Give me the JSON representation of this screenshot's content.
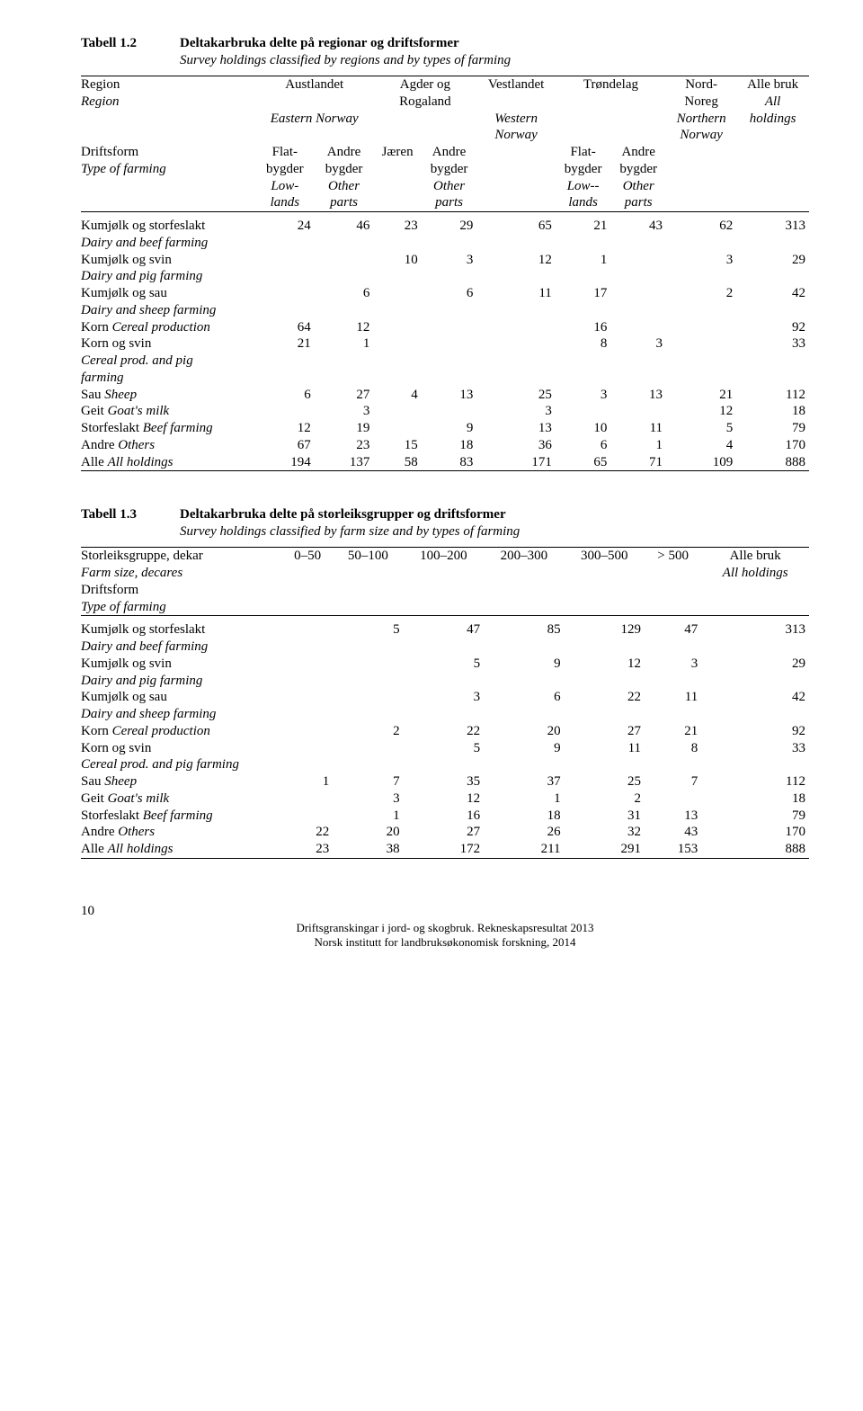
{
  "table1": {
    "number": "Tabell 1.2",
    "title": "Deltakarbruka delte på regionar og driftsformer",
    "subtitle": "Survey holdings classified by regions and by types of farming",
    "head": {
      "region": "Region",
      "region_en": "Region",
      "austlandet": "Austlandet",
      "eastern": "Eastern Norway",
      "agder": "Agder og",
      "rogaland": "Rogaland",
      "vestlandet": "Vestlandet",
      "western": "Western",
      "norway_w": "Norway",
      "trondelag": "Trøndelag",
      "nord": "Nord-",
      "noreg": "Noreg",
      "northern": "Northern",
      "norway_n": "Norway",
      "alle": "Alle bruk",
      "all": "All",
      "holdings": "holdings",
      "driftsform": "Driftsform",
      "typefarm": "Type of farming",
      "flat": "Flat-",
      "bygder": "bygder",
      "low": "Low-",
      "lands": "lands",
      "andre": "Andre",
      "other": "Other",
      "parts": "parts",
      "jaeren": "Jæren",
      "low2": "Low--"
    },
    "rows": [
      {
        "l1": "Kumjølk og storfeslakt",
        "l2": "Dairy and beef farming",
        "v": [
          "24",
          "46",
          "23",
          "29",
          "65",
          "21",
          "43",
          "62",
          "313"
        ]
      },
      {
        "l1": "Kumjølk og svin",
        "l2": "Dairy and pig farming",
        "v": [
          "",
          "",
          "10",
          "3",
          "12",
          "1",
          "",
          "3",
          "29"
        ]
      },
      {
        "l1": "Kumjølk og sau",
        "l2": "Dairy and sheep farming",
        "v": [
          "",
          "6",
          "",
          "6",
          "11",
          "17",
          "",
          "2",
          "42"
        ]
      },
      {
        "l1": "Korn <span class=\"italic\">Cereal production</span>",
        "v": [
          "64",
          "12",
          "",
          "",
          "",
          "16",
          "",
          "",
          "92"
        ]
      },
      {
        "l1": "Korn og svin",
        "l2": "Cereal prod. and pig",
        "l3": "farming",
        "v": [
          "21",
          "1",
          "",
          "",
          "",
          "8",
          "3",
          "",
          "33"
        ]
      },
      {
        "l1": "Sau  <span class=\"italic\">Sheep</span>",
        "v": [
          "6",
          "27",
          "4",
          "13",
          "25",
          "3",
          "13",
          "21",
          "112"
        ]
      },
      {
        "l1": "Geit  <span class=\"italic\">Goat's milk</span>",
        "v": [
          "",
          "3",
          "",
          "",
          "3",
          "",
          "",
          "12",
          "18"
        ]
      },
      {
        "l1": "Storfeslakt  <span class=\"italic\">Beef farming</span>",
        "v": [
          "12",
          "19",
          "",
          "9",
          "13",
          "10",
          "11",
          "5",
          "79"
        ]
      },
      {
        "l1": "Andre  <span class=\"italic\">Others</span>",
        "v": [
          "67",
          "23",
          "15",
          "18",
          "36",
          "6",
          "1",
          "4",
          "170"
        ]
      },
      {
        "l1": "Alle  <span class=\"italic\">All holdings</span>",
        "v": [
          "194",
          "137",
          "58",
          "83",
          "171",
          "65",
          "71",
          "109",
          "888"
        ]
      }
    ]
  },
  "table2": {
    "number": "Tabell 1.3",
    "title": "Deltakarbruka delte på storleiksgrupper og driftsformer",
    "subtitle": "Survey holdings classified by farm size and by types of farming",
    "head": {
      "stor": "Storleiksgruppe, dekar",
      "farmsize": "Farm size, decares",
      "driftsform": "Driftsform",
      "typefarm": "Type of farming",
      "c1": "0–50",
      "c2": "50–100",
      "c3": "100–200",
      "c4": "200–300",
      "c5": "300–500",
      "c6": "> 500",
      "alle": "Alle bruk",
      "all": "All holdings"
    },
    "rows": [
      {
        "l1": "Kumjølk og storfeslakt",
        "l2": "Dairy and beef farming",
        "v": [
          "",
          "5",
          "47",
          "85",
          "129",
          "47",
          "313"
        ]
      },
      {
        "l1": "Kumjølk og svin",
        "l2": "Dairy and pig farming",
        "v": [
          "",
          "",
          "5",
          "9",
          "12",
          "3",
          "29"
        ]
      },
      {
        "l1": "Kumjølk og sau",
        "l2": "Dairy and sheep farming",
        "v": [
          "",
          "",
          "3",
          "6",
          "22",
          "11",
          "42"
        ]
      },
      {
        "l1": "Korn <span class=\"italic\">Cereal production</span>",
        "v": [
          "",
          "2",
          "22",
          "20",
          "27",
          "21",
          "92"
        ]
      },
      {
        "l1": "Korn og svin",
        "l2": "Cereal prod. and pig farming",
        "v": [
          "",
          "",
          "5",
          "9",
          "11",
          "8",
          "33"
        ]
      },
      {
        "l1": "Sau  <span class=\"italic\">Sheep</span>",
        "v": [
          "1",
          "7",
          "35",
          "37",
          "25",
          "7",
          "112"
        ]
      },
      {
        "l1": "Geit  <span class=\"italic\">Goat's milk</span>",
        "v": [
          "",
          "3",
          "12",
          "1",
          "2",
          "",
          "18"
        ]
      },
      {
        "l1": "Storfeslakt  <span class=\"italic\">Beef farming</span>",
        "v": [
          "",
          "1",
          "16",
          "18",
          "31",
          "13",
          "79"
        ]
      },
      {
        "l1": "Andre  <span class=\"italic\">Others</span>",
        "v": [
          "22",
          "20",
          "27",
          "26",
          "32",
          "43",
          "170"
        ]
      },
      {
        "l1": "Alle  <span class=\"italic\">All holdings</span>",
        "v": [
          "23",
          "38",
          "172",
          "211",
          "291",
          "153",
          "888"
        ]
      }
    ]
  },
  "footer": {
    "page": "10",
    "line1": "Driftsgranskingar i jord- og skogbruk. Rekneskapsresultat 2013",
    "line2": "Norsk institutt for landbruksøkonomisk forskning, 2014"
  }
}
